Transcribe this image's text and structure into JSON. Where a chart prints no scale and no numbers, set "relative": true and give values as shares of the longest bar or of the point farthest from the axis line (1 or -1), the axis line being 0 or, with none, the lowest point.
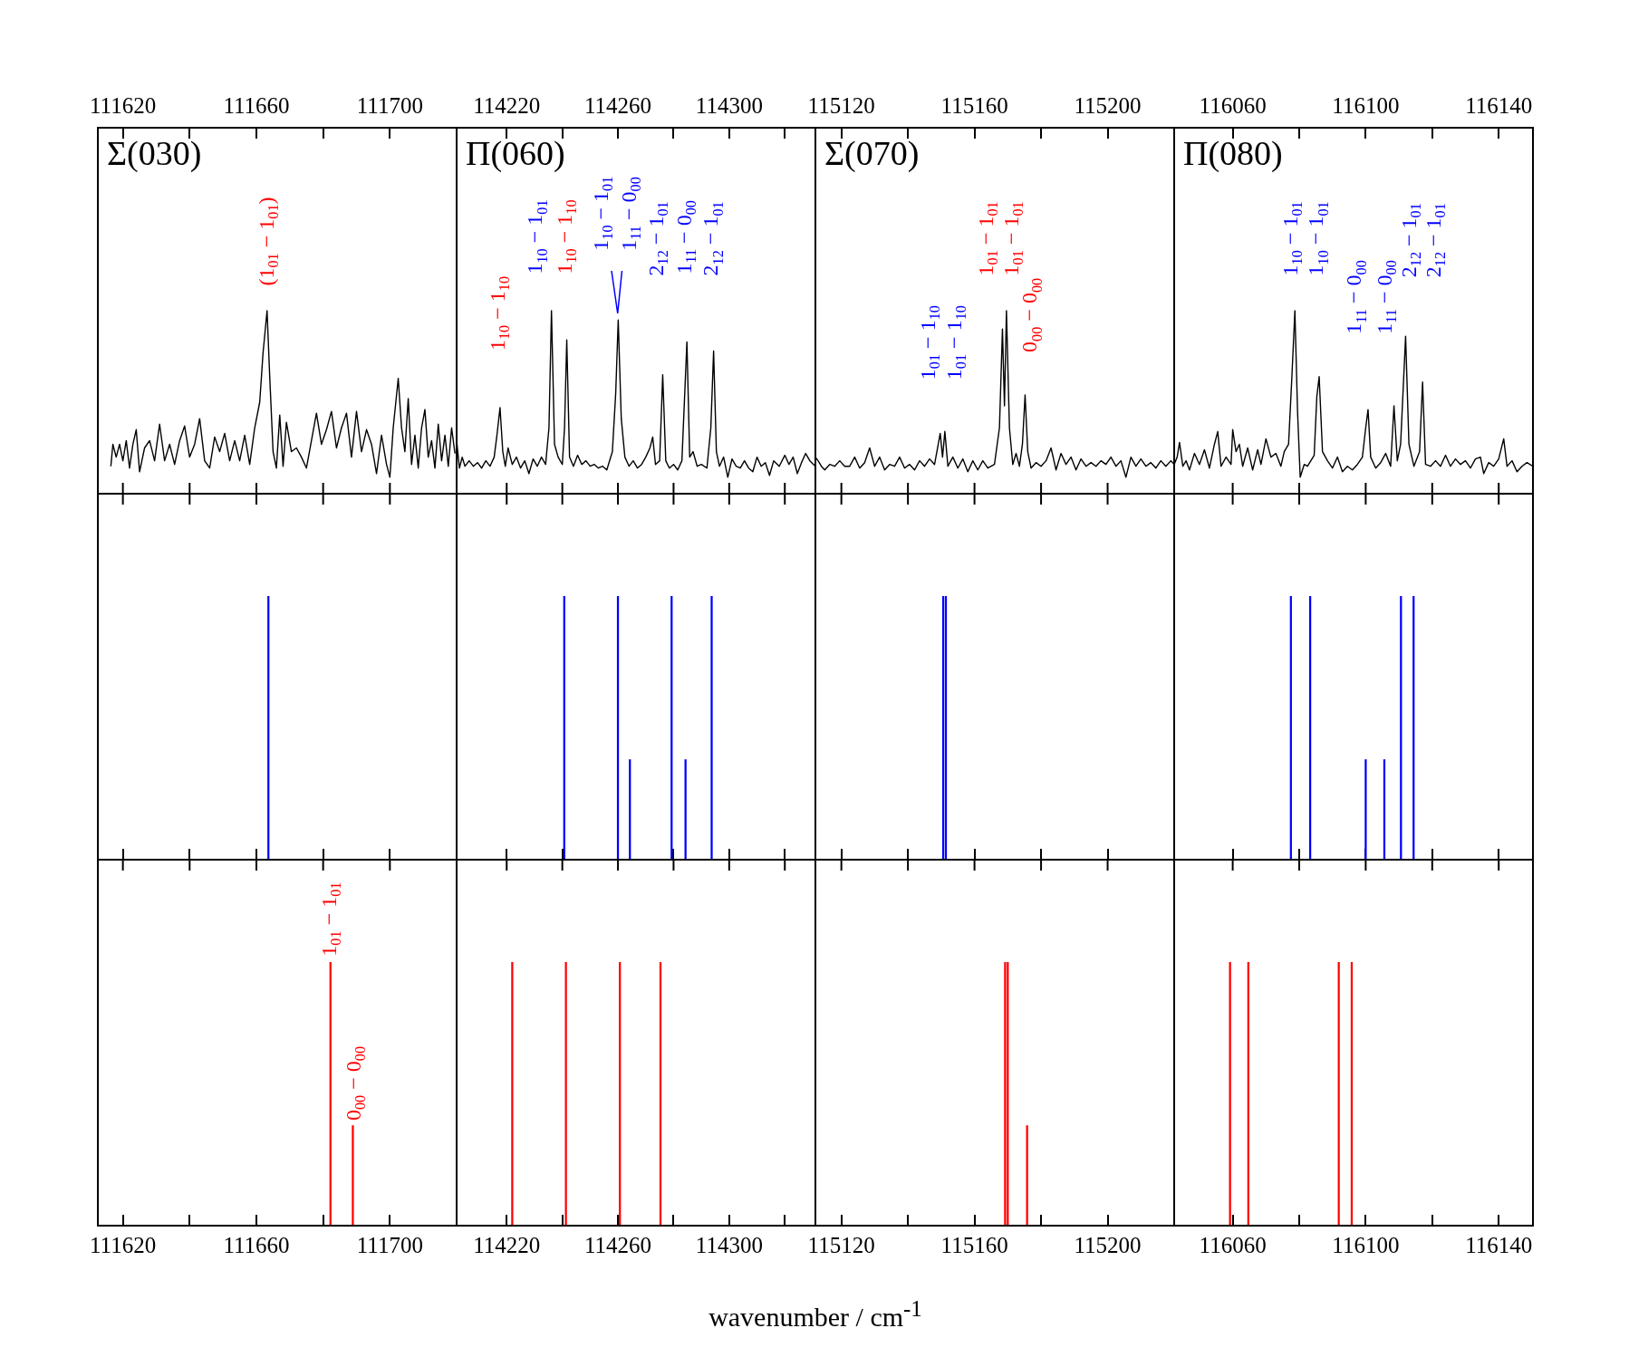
{
  "chart_data": [
    {
      "type": "line",
      "title": "Σ(030)",
      "relative": true,
      "color": "#000000",
      "xlim": [
        111612.5,
        111720
      ],
      "xticks": [
        111620,
        {
          "value": 111640,
          "label": null
        },
        111660,
        {
          "value": 111680,
          "label": null
        },
        111700
      ],
      "x": [
        111616.4,
        111617,
        111618,
        111619,
        111620,
        111621,
        111622,
        111623,
        111624,
        111625,
        111626.5,
        111628,
        111629.5,
        111631,
        111632.5,
        111634,
        111635.5,
        111637,
        111638.5,
        111640,
        111641.5,
        111643,
        111644.5,
        111646,
        111647.5,
        111649,
        111650.5,
        111652,
        111653.5,
        111655,
        111656.5,
        111658,
        111659.5,
        111661,
        111662,
        111663.2,
        111664,
        111665,
        111666,
        111667,
        111668,
        111669,
        111670.5,
        111672,
        111673.5,
        111675,
        111676.5,
        111678,
        111679.5,
        111681,
        111682.5,
        111684,
        111685.5,
        111687,
        111688.5,
        111690,
        111691.5,
        111693,
        111694.5,
        111696,
        111697.5,
        111699,
        111700,
        111701,
        111702.5,
        111703.5,
        111704.5,
        111705.5,
        111706.5,
        111707.5,
        111708.5,
        111709.5,
        111710.5,
        111711.5,
        111712.5,
        111713.5,
        111714.5,
        111715.5,
        111716.5,
        111717.5,
        111718.5,
        111719.5
      ],
      "values": [
        0.15,
        0.27,
        0.2,
        0.27,
        0.18,
        0.29,
        0.14,
        0.27,
        0.35,
        0.12,
        0.25,
        0.29,
        0.18,
        0.38,
        0.18,
        0.27,
        0.16,
        0.29,
        0.37,
        0.2,
        0.27,
        0.41,
        0.18,
        0.14,
        0.31,
        0.23,
        0.33,
        0.18,
        0.29,
        0.18,
        0.32,
        0.16,
        0.36,
        0.5,
        0.77,
        1,
        0.64,
        0.23,
        0.14,
        0.43,
        0.15,
        0.39,
        0.23,
        0.25,
        0.2,
        0.14,
        0.29,
        0.44,
        0.27,
        0.35,
        0.45,
        0.25,
        0.36,
        0.44,
        0.2,
        0.45,
        0.23,
        0.35,
        0.27,
        0.11,
        0.32,
        0.16,
        0.09,
        0.36,
        0.63,
        0.36,
        0.23,
        0.52,
        0.16,
        0.32,
        0.14,
        0.36,
        0.46,
        0.2,
        0.29,
        0.14,
        0.38,
        0.18,
        0.32,
        0.15,
        0.36,
        0.22
      ],
      "annotations": [
        "(1$_{01}$ − 1$_{01}$)"
      ]
    },
    {
      "type": "line",
      "title": "Π(060)",
      "relative": true,
      "color": "#000000",
      "xlim": [
        114202,
        114331
      ],
      "xticks": [
        114220,
        {
          "value": 114240,
          "label": null
        },
        114260,
        {
          "value": 114280,
          "label": null
        },
        114300,
        {
          "value": 114320,
          "label": null
        }
      ],
      "x": [
        114202,
        114203,
        114204,
        114205,
        114206.5,
        114208,
        114209.5,
        114211,
        114212.5,
        114214,
        114215.5,
        114216.5,
        114217.6,
        114218.6,
        114219.5,
        114220.5,
        114222,
        114223.5,
        114225,
        114226.5,
        114228,
        114229.5,
        114231,
        114232.5,
        114234,
        114235.2,
        114236.1,
        114237.2,
        114238.5,
        114240,
        114240.8,
        114241.6,
        114242.6,
        114244,
        114245.5,
        114247,
        114248.5,
        114250,
        114251.5,
        114253,
        114254.5,
        114256,
        114258,
        114259.2,
        114260.1,
        114261.2,
        114262.5,
        114264,
        114265.5,
        114267,
        114268.5,
        114270,
        114271.5,
        114272.5,
        114273.5,
        114275,
        114276.1,
        114277.2,
        114278.5,
        114280,
        114281.5,
        114283,
        114284.8,
        114285.8,
        114287,
        114288.5,
        114290,
        114292,
        114293.4,
        114294.4,
        114295.4,
        114296.5,
        114298,
        114299.5,
        114301,
        114302.5,
        114304,
        114305.5,
        114307,
        114308.5,
        114310,
        114311.5,
        114313,
        114314.5,
        114316,
        114318,
        114320,
        114321.5,
        114323,
        114324.5,
        114326,
        114327.5,
        114329,
        114331
      ],
      "values": [
        0.29,
        0.14,
        0.2,
        0.15,
        0.18,
        0.15,
        0.17,
        0.14,
        0.18,
        0.15,
        0.2,
        0.32,
        0.47,
        0.23,
        0.15,
        0.25,
        0.16,
        0.2,
        0.14,
        0.18,
        0.11,
        0.19,
        0.15,
        0.2,
        0.16,
        0.36,
        1,
        0.27,
        0.2,
        0.16,
        0.36,
        0.84,
        0.2,
        0.15,
        0.21,
        0.16,
        0.18,
        0.15,
        0.16,
        0.14,
        0.15,
        0.13,
        0.23,
        0.55,
        0.95,
        0.41,
        0.2,
        0.15,
        0.18,
        0.14,
        0.16,
        0.2,
        0.25,
        0.31,
        0.16,
        0.18,
        0.65,
        0.18,
        0.14,
        0.16,
        0.13,
        0.18,
        0.83,
        0.2,
        0.23,
        0.15,
        0.16,
        0.14,
        0.36,
        0.78,
        0.23,
        0.15,
        0.2,
        0.09,
        0.19,
        0.15,
        0.14,
        0.18,
        0.14,
        0.12,
        0.2,
        0.15,
        0.17,
        0.1,
        0.18,
        0.15,
        0.21,
        0.16,
        0.2,
        0.11,
        0.17,
        0.22,
        0.18,
        0.15
      ],
      "annotations": [
        "1$_{10}$ − 1$_{10}$",
        "1$_{10}$ − 1$_{01}$",
        "1$_{10}$ − 1$_{10}$",
        "1$_{10}$ − 1$_{01}$",
        "1$_{11}$ − 0$_{00}$",
        "2$_{12}$ − 1$_{01}$",
        "1$_{11}$ − 0$_{00}$",
        "2$_{12}$ − 1$_{01}$"
      ]
    },
    {
      "type": "line",
      "title": "Σ(070)",
      "relative": true,
      "color": "#000000",
      "xlim": [
        115112.2,
        115220
      ],
      "xticks": [
        115120,
        {
          "value": 115140,
          "label": null
        },
        115160,
        {
          "value": 115180,
          "label": null
        },
        115200
      ],
      "x": [
        115112.2,
        115113,
        115114,
        115115,
        115116.5,
        115118,
        115119.5,
        115121,
        115122.5,
        115124,
        115125.5,
        115127,
        115128.5,
        115130,
        115131.5,
        115133,
        115134.5,
        115136,
        115137.5,
        115139,
        115140.5,
        115142,
        115143.5,
        115145,
        115146.5,
        115148,
        115149.7,
        115150.4,
        115151.1,
        115152,
        115153.5,
        115155,
        115156.5,
        115158,
        115159.5,
        115161,
        115162.5,
        115164,
        115166,
        115167.5,
        115168.4,
        115169,
        115169.6,
        115170.5,
        115171.5,
        115172.5,
        115173.5,
        115174.4,
        115175.2,
        115176,
        115177,
        115178.5,
        115180,
        115181.5,
        115183,
        115184.5,
        115186,
        115187.5,
        115189,
        115190.5,
        115192,
        115193.5,
        115195,
        115196.5,
        115198,
        115199.5,
        115201,
        115202.5,
        115204,
        115205.5,
        115207,
        115208.5,
        115210,
        115211.5,
        115213,
        115214.5,
        115216,
        115217.5,
        115219,
        115220
      ],
      "values": [
        0.2,
        0.18,
        0.15,
        0.13,
        0.16,
        0.15,
        0.18,
        0.15,
        0.15,
        0.2,
        0.14,
        0.17,
        0.25,
        0.15,
        0.2,
        0.13,
        0.16,
        0.15,
        0.2,
        0.14,
        0.16,
        0.13,
        0.18,
        0.15,
        0.19,
        0.16,
        0.33,
        0.2,
        0.34,
        0.15,
        0.2,
        0.14,
        0.19,
        0.12,
        0.18,
        0.13,
        0.18,
        0.14,
        0.16,
        0.36,
        0.9,
        0.48,
        1,
        0.36,
        0.16,
        0.22,
        0.15,
        0.27,
        0.54,
        0.23,
        0.14,
        0.17,
        0.15,
        0.18,
        0.25,
        0.13,
        0.22,
        0.16,
        0.2,
        0.13,
        0.19,
        0.15,
        0.17,
        0.15,
        0.18,
        0.16,
        0.2,
        0.15,
        0.18,
        0.09,
        0.2,
        0.15,
        0.19,
        0.15,
        0.17,
        0.14,
        0.18,
        0.15,
        0.18,
        0.16
      ],
      "annotations": [
        "1$_{01}$ − 1$_{10}$",
        "1$_{01}$ − 1$_{10}$",
        "1$_{01}$ − 1$_{01}$",
        "1$_{01}$ − 1$_{01}$",
        "0$_{00}$ − 0$_{00}$"
      ]
    },
    {
      "type": "line",
      "title": "Π(080)",
      "relative": true,
      "color": "#000000",
      "xlim": [
        116042.4,
        116150.3
      ],
      "xticks": [
        116060,
        {
          "value": 116080,
          "label": null
        },
        116100,
        {
          "value": 116120,
          "label": null
        },
        116140
      ],
      "x": [
        116042.4,
        116043.3,
        116044,
        116045,
        116046,
        116047,
        116048.5,
        116050,
        116051.5,
        116053,
        116054.5,
        116055.5,
        116056.5,
        116058,
        116059.5,
        116060,
        116061,
        116062,
        116063,
        116064.5,
        116066,
        116067.5,
        116068.5,
        116070,
        116071.5,
        116073,
        116074.5,
        116075.5,
        116076.8,
        116077.8,
        116078.7,
        116079.5,
        116080.3,
        116081.5,
        116082.5,
        116083.5,
        116084.5,
        116085.3,
        116086,
        116087,
        116088.5,
        116090,
        116091.5,
        116093,
        116094.5,
        116096,
        116097.5,
        116099,
        116100,
        116100.7,
        116101.5,
        116103,
        116104.5,
        116106,
        116107.5,
        116108.5,
        116109.5,
        116110.5,
        116112,
        116113,
        116114.5,
        116116.2,
        116117.1,
        116118,
        116119.5,
        116121,
        116122.5,
        116124,
        116125.5,
        116127,
        116128.5,
        116130,
        116131.5,
        116133,
        116134.5,
        116135.5,
        116137,
        116138.5,
        116140,
        116141.5,
        116142.5,
        116144,
        116145.5,
        116147,
        116148.5,
        116150.3
      ],
      "values": [
        0.16,
        0.2,
        0.28,
        0.15,
        0.18,
        0.13,
        0.22,
        0.16,
        0.24,
        0.14,
        0.27,
        0.34,
        0.15,
        0.2,
        0.16,
        0.35,
        0.23,
        0.27,
        0.15,
        0.25,
        0.13,
        0.24,
        0.16,
        0.3,
        0.2,
        0.22,
        0.15,
        0.23,
        0.27,
        0.64,
        1,
        0.45,
        0.09,
        0.16,
        0.15,
        0.18,
        0.21,
        0.53,
        0.64,
        0.23,
        0.18,
        0.14,
        0.2,
        0.12,
        0.15,
        0.13,
        0.16,
        0.2,
        0.36,
        0.46,
        0.2,
        0.14,
        0.17,
        0.22,
        0.15,
        0.48,
        0.18,
        0.27,
        0.86,
        0.27,
        0.15,
        0.23,
        0.61,
        0.16,
        0.15,
        0.18,
        0.15,
        0.21,
        0.15,
        0.19,
        0.16,
        0.18,
        0.14,
        0.19,
        0.2,
        0.11,
        0.17,
        0.15,
        0.19,
        0.3,
        0.15,
        0.18,
        0.12,
        0.15,
        0.17,
        0.15
      ],
      "annotations": [
        "1$_{10}$ − 1$_{01}$",
        "1$_{10}$ − 1$_{01}$",
        "1$_{11}$ − 0$_{00}$",
        "1$_{11}$ − 0$_{00}$",
        "2$_{12}$ − 1$_{01}$",
        "2$_{12}$ − 1$_{01}$"
      ]
    },
    {
      "type": "bar",
      "relative": true,
      "tick_labels": false,
      "color": "#0000ff",
      "xlim": [
        111612.5,
        111720
      ],
      "xticks": [
        111620,
        {
          "value": 111640,
          "label": null
        },
        111660,
        {
          "value": 111680,
          "label": null
        },
        111700
      ],
      "x": [
        111663.6
      ],
      "values": [
        1
      ]
    },
    {
      "type": "bar",
      "relative": true,
      "tick_labels": false,
      "color": "#0000ff",
      "xlim": [
        114202,
        114331
      ],
      "xticks": [
        114220,
        {
          "value": 114240,
          "label": null
        },
        114260,
        {
          "value": 114280,
          "label": null
        },
        114300,
        {
          "value": 114320,
          "label": null
        }
      ],
      "x": [
        114240.7,
        114260,
        114264.3,
        114279.3,
        114284.3,
        114293.7
      ],
      "values": [
        1,
        1,
        0.38,
        1,
        0.38,
        1
      ]
    },
    {
      "type": "bar",
      "relative": true,
      "tick_labels": false,
      "color": "#0000ff",
      "xlim": [
        115112.2,
        115220
      ],
      "xticks": [
        115120,
        {
          "value": 115140,
          "label": null
        },
        115160,
        {
          "value": 115180,
          "label": null
        },
        115200
      ],
      "x": [
        115150.6,
        115151.4
      ],
      "values": [
        1,
        1
      ]
    },
    {
      "type": "bar",
      "relative": true,
      "tick_labels": false,
      "color": "#0000ff",
      "xlim": [
        116042.4,
        116150.3
      ],
      "xticks": [
        116060,
        {
          "value": 116080,
          "label": null
        },
        116100,
        {
          "value": 116120,
          "label": null
        },
        116140
      ],
      "x": [
        116077.5,
        116083.3,
        116100,
        116105.6,
        116110.6,
        116114.4
      ],
      "values": [
        1,
        1,
        0.38,
        0.38,
        1,
        1
      ]
    },
    {
      "type": "bar",
      "relative": true,
      "color": "#ff0000",
      "xlim": [
        111612.5,
        111720
      ],
      "xticks": [
        111620,
        {
          "value": 111640,
          "label": null
        },
        111660,
        {
          "value": 111680,
          "label": null
        },
        111700
      ],
      "x": [
        111682.2,
        111688.9
      ],
      "values": [
        1,
        0.38
      ],
      "annotations": [
        "1$_{01}$ − 1$_{01}$",
        "0$_{00}$ − 0$_{00}$"
      ]
    },
    {
      "type": "bar",
      "relative": true,
      "color": "#ff0000",
      "xlabel": "wavenumber / cm$^{-1}$",
      "xlim": [
        114202,
        114331
      ],
      "xticks": [
        114220,
        {
          "value": 114240,
          "label": null
        },
        114260,
        {
          "value": 114280,
          "label": null
        },
        114300,
        {
          "value": 114320,
          "label": null
        }
      ],
      "x": [
        114222,
        114241.3,
        114260.7,
        114275.3
      ],
      "values": [
        1,
        1,
        1,
        1
      ]
    },
    {
      "type": "bar",
      "relative": true,
      "color": "#ff0000",
      "xlim": [
        115112.2,
        115220
      ],
      "xticks": [
        115120,
        {
          "value": 115140,
          "label": null
        },
        115160,
        {
          "value": 115180,
          "label": null
        },
        115200
      ],
      "x": [
        115169.2,
        115170,
        115175.8
      ],
      "values": [
        1,
        1,
        0.38
      ]
    },
    {
      "type": "bar",
      "relative": true,
      "color": "#ff0000",
      "xlim": [
        116042.4,
        116150.3
      ],
      "xticks": [
        116060,
        {
          "value": 116080,
          "label": null
        },
        116100,
        {
          "value": 116120,
          "label": null
        },
        116140
      ],
      "x": [
        116059.2,
        116064.7,
        116091.9,
        116095.8
      ],
      "values": [
        1,
        1,
        1,
        1
      ]
    }
  ]
}
